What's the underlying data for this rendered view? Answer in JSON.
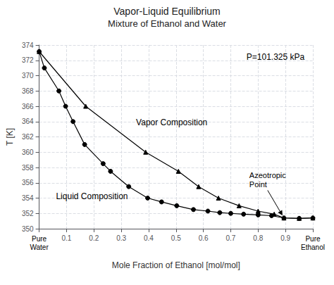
{
  "chart_data": {
    "type": "line",
    "title": "Vapor-Liquid Equilibrium",
    "subtitle": "Mixture of Ethanol and Water",
    "x_label": "Mole Fraction of Ethanol [mol/mol]",
    "y_label": "T [K]",
    "xlim": [
      0,
      1
    ],
    "ylim": [
      350,
      374
    ],
    "xticks": [
      {
        "value": 0.0,
        "label": null
      },
      0.1,
      0.2,
      0.3,
      0.4,
      0.5,
      0.6,
      0.7,
      0.8,
      0.9,
      {
        "value": 1.0,
        "label": null
      }
    ],
    "yticks": [
      350,
      352,
      354,
      356,
      358,
      360,
      362,
      364,
      366,
      368,
      370,
      372,
      374
    ],
    "grid": true,
    "series": [
      {
        "x": [
          0.0,
          0.019,
          0.0721,
          0.0966,
          0.1238,
          0.1661,
          0.2337,
          0.2608,
          0.3273,
          0.3965,
          0.4472,
          0.5027,
          0.5637,
          0.6164,
          0.6599,
          0.7,
          0.7469,
          0.8,
          0.8491,
          0.8943,
          0.9501,
          1.0
        ],
        "values": [
          373.15,
          371.0,
          368.0,
          366.0,
          364.0,
          361.0,
          358.5,
          357.5,
          355.5,
          354.0,
          353.5,
          353.0,
          352.5,
          352.3,
          352.1,
          352.0,
          351.9,
          351.8,
          351.7,
          351.4,
          351.35,
          351.4
        ],
        "color": "#000000",
        "marker": "circle"
      },
      {
        "x": [
          0.0,
          0.17,
          0.3891,
          0.5089,
          0.5826,
          0.6552,
          0.7304,
          0.8,
          0.8587,
          0.8943,
          0.9501,
          1.0
        ],
        "values": [
          373.15,
          366.0,
          360.0,
          357.5,
          355.5,
          354.0,
          353.0,
          352.3,
          351.9,
          351.4,
          351.35,
          351.4
        ],
        "color": "#000000",
        "marker": "triangle"
      }
    ],
    "annotations": [
      {
        "text": "P=101.325 kPa"
      },
      {
        "text": "Vapor Composition"
      },
      {
        "text": "Liquid Composition"
      },
      {
        "text": "Azeotropic\nPoint",
        "x": 0.8943,
        "y": 351.4
      },
      {
        "text": "Pure\nWater",
        "x": 0
      },
      {
        "text": "Pure\nEthanol",
        "x": 1
      }
    ]
  }
}
